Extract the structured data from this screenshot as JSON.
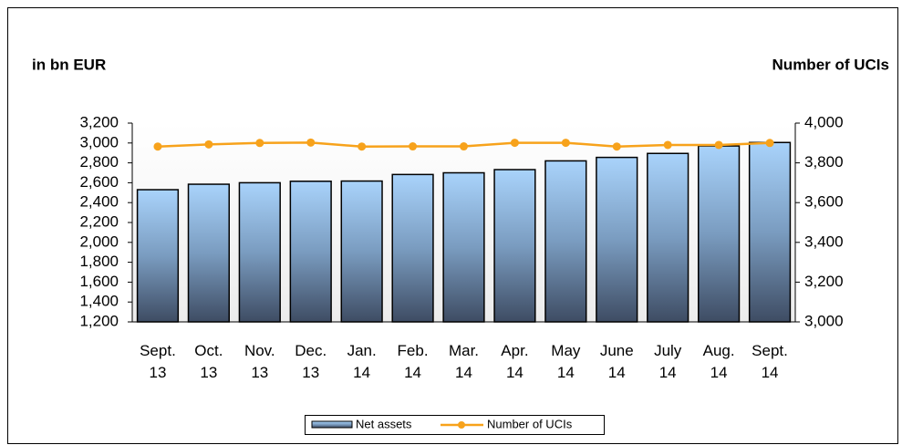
{
  "chart_data": {
    "type": "bar-line",
    "y_label": "in bn EUR",
    "y2_label": "Number of UCIs",
    "categories": [
      "Sept. 13",
      "Oct. 13",
      "Nov. 13",
      "Dec. 13",
      "Jan. 14",
      "Feb. 14",
      "Mar. 14",
      "Apr. 14",
      "May 14",
      "June 14",
      "July 14",
      "Aug. 14",
      "Sept. 14"
    ],
    "series": [
      {
        "name": "Net assets",
        "color": "#9ec8f2",
        "values": [
          2530,
          2585,
          2600,
          2615,
          2617,
          2683,
          2700,
          2732,
          2820,
          2855,
          2895,
          2970,
          3005
        ]
      },
      {
        "name": "Number of UCIs",
        "color": "#f7a21b",
        "axis": "y2",
        "values": [
          3882,
          3893,
          3900,
          3902,
          3882,
          3883,
          3883,
          3901,
          3901,
          3882,
          3890,
          3890,
          3900
        ]
      }
    ],
    "ylim": [
      1200,
      3200
    ],
    "yticks": [
      {
        "value": 1200,
        "label": "1,200"
      },
      {
        "value": 1400,
        "label": "1,400"
      },
      {
        "value": 1600,
        "label": "1,600"
      },
      {
        "value": 1800,
        "label": "1,800"
      },
      {
        "value": 2000,
        "label": "2,000"
      },
      {
        "value": 2200,
        "label": "2,200"
      },
      {
        "value": 2400,
        "label": "2,400"
      },
      {
        "value": 2600,
        "label": "2,600"
      },
      {
        "value": 2800,
        "label": "2,800"
      },
      {
        "value": 3000,
        "label": "3,000"
      },
      {
        "value": 3200,
        "label": "3,200"
      }
    ],
    "y2lim": [
      3000,
      4000
    ],
    "y2ticks": [
      {
        "value": 3000,
        "label": "3,000"
      },
      {
        "value": 3200,
        "label": "3,200"
      },
      {
        "value": 3400,
        "label": "3,400"
      },
      {
        "value": 3600,
        "label": "3,600"
      },
      {
        "value": 3800,
        "label": "3,800"
      },
      {
        "value": 4000,
        "label": "4,000"
      }
    ],
    "legend": "bottom"
  }
}
